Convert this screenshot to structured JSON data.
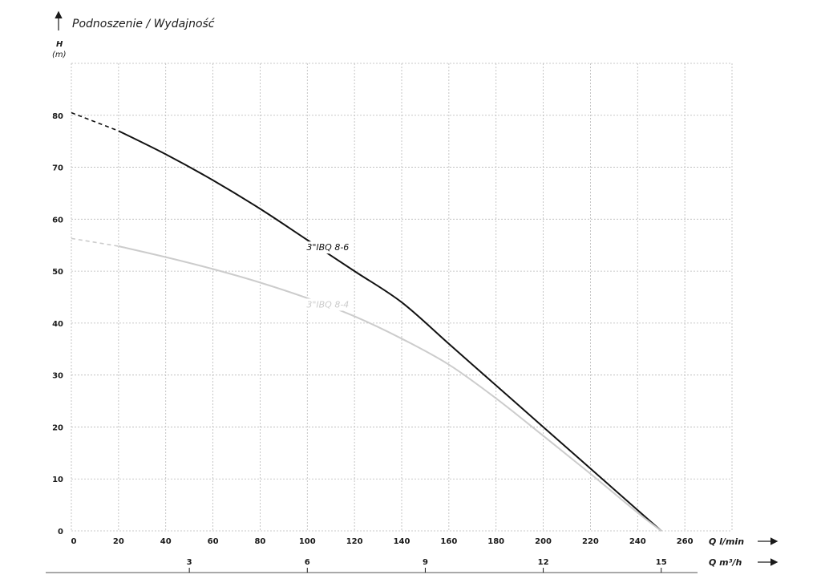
{
  "chart_data": {
    "type": "line",
    "title": "Podnoszenie / Wydajność",
    "ylabel": "H",
    "yunit": "(m)",
    "xlabel_primary": "Q l/min",
    "xlabel_secondary": "Q m³/h",
    "xlim": [
      0,
      280
    ],
    "ylim": [
      0,
      90
    ],
    "grid": true,
    "x_gridlines": [
      0,
      20,
      40,
      60,
      80,
      100,
      120,
      140,
      160,
      180,
      200,
      220,
      240,
      260,
      280
    ],
    "y_gridlines": [
      0,
      10,
      20,
      30,
      40,
      50,
      60,
      70,
      80,
      90
    ],
    "x_ticks": [
      "0",
      "20",
      "40",
      "60",
      "80",
      "100",
      "120",
      "140",
      "160",
      "180",
      "200",
      "220",
      "240",
      "260"
    ],
    "x_tick_values": [
      0,
      20,
      40,
      60,
      80,
      100,
      120,
      140,
      160,
      180,
      200,
      220,
      240,
      260
    ],
    "y_ticks": [
      "0",
      "10",
      "20",
      "30",
      "40",
      "50",
      "60",
      "70",
      "80"
    ],
    "y_tick_values": [
      0,
      10,
      20,
      30,
      40,
      50,
      60,
      70,
      80
    ],
    "secondary_ticks": [
      "3",
      "6",
      "9",
      "12",
      "15"
    ],
    "secondary_tick_values_lmin": [
      50,
      100,
      150,
      200,
      250
    ],
    "series": [
      {
        "name": "3\"IBQ 8-6",
        "color": "#111111",
        "x": [
          0,
          20,
          40,
          60,
          80,
          100,
          120,
          140,
          160,
          180,
          200,
          220,
          240,
          250
        ],
        "values": [
          80.5,
          77,
          72.5,
          67.5,
          62,
          56,
          50,
          44,
          36,
          28,
          20,
          12,
          4,
          0
        ],
        "dashed_until_x": 20,
        "label_at": [
          108,
          54
        ]
      },
      {
        "name": "3\"IBQ 8-4",
        "color": "#cccccc",
        "x": [
          0,
          20,
          40,
          60,
          80,
          100,
          120,
          140,
          160,
          180,
          200,
          220,
          240,
          250
        ],
        "values": [
          56.3,
          54.8,
          52.7,
          50.4,
          47.8,
          44.8,
          41.3,
          37,
          32,
          25.5,
          18.3,
          11,
          3.5,
          0
        ],
        "dashed_until_x": 20,
        "label_at": [
          108,
          43
        ]
      }
    ]
  }
}
